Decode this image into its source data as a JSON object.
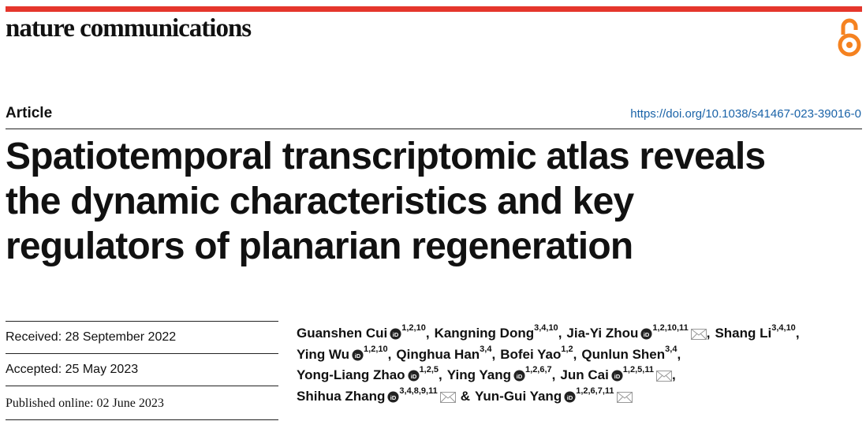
{
  "header": {
    "journal": "nature communications"
  },
  "article": {
    "type": "Article",
    "doi": "https://doi.org/10.1038/s41467-023-39016-0",
    "title_lines": [
      "Spatiotemporal transcriptomic atlas reveals",
      "the dynamic characteristics and key",
      "regulators of planarian regeneration"
    ]
  },
  "dates": [
    "Received: 28 September 2022",
    "Accepted: 25 May 2023",
    "Published online: 02 June 2023"
  ],
  "authors": {
    "lines": [
      [
        {
          "name": "Guanshen Cui",
          "affiliations": "1,2,10",
          "orcid": true,
          "corresponding": false,
          "separator": ","
        },
        {
          "name": "Kangning Dong",
          "affiliations": "3,4,10",
          "orcid": false,
          "corresponding": false,
          "separator": ","
        },
        {
          "name": "Jia-Yi Zhou",
          "affiliations": "1,2,10,11",
          "orcid": true,
          "corresponding": true,
          "separator": ","
        },
        {
          "name": "Shang Li",
          "affiliations": "3,4,10",
          "orcid": false,
          "corresponding": false,
          "separator": ","
        }
      ],
      [
        {
          "name": "Ying Wu",
          "affiliations": "1,2,10",
          "orcid": true,
          "corresponding": false,
          "separator": ","
        },
        {
          "name": "Qinghua Han",
          "affiliations": "3,4",
          "orcid": false,
          "corresponding": false,
          "separator": ","
        },
        {
          "name": "Bofei Yao",
          "affiliations": "1,2",
          "orcid": false,
          "corresponding": false,
          "separator": ","
        },
        {
          "name": "Qunlun Shen",
          "affiliations": "3,4",
          "orcid": false,
          "corresponding": false,
          "separator": ","
        }
      ],
      [
        {
          "name": "Yong-Liang Zhao",
          "affiliations": "1,2,5",
          "orcid": true,
          "corresponding": false,
          "separator": ","
        },
        {
          "name": "Ying Yang",
          "affiliations": "1,2,6,7",
          "orcid": true,
          "corresponding": false,
          "separator": ","
        },
        {
          "name": "Jun Cai",
          "affiliations": "1,2,5,11",
          "orcid": true,
          "corresponding": true,
          "separator": ","
        }
      ],
      [
        {
          "name": "Shihua Zhang",
          "affiliations": "3,4,8,9,11",
          "orcid": true,
          "corresponding": true,
          "separator": "&"
        },
        {
          "name": "Yun-Gui Yang",
          "affiliations": "1,2,6,7,11",
          "orcid": true,
          "corresponding": true
        }
      ]
    ]
  }
}
